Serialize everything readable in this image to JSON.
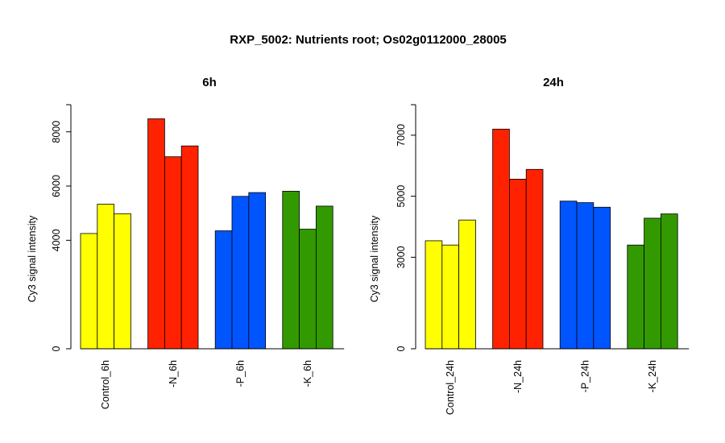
{
  "figure": {
    "title": "RXP_5002: Nutrients root; Os02g0112000_28005"
  },
  "chart_data": [
    {
      "type": "bar",
      "title": "6h",
      "ylabel": "Cy3 signal intensity",
      "xlabel": "",
      "ylim": [
        0,
        9000
      ],
      "yticks": [
        0,
        4000,
        6000,
        8000
      ],
      "categories": [
        "Control_6h",
        "-N_6h",
        "-P_6h",
        "-K_6h"
      ],
      "colors": [
        "#ffff00",
        "#ff2200",
        "#0055ff",
        "#339900"
      ],
      "values": [
        [
          4250,
          5330,
          4980
        ],
        [
          8480,
          7080,
          7480
        ],
        [
          4350,
          5620,
          5760
        ],
        [
          5810,
          4410,
          5260
        ]
      ],
      "grid": false,
      "legend": "none"
    },
    {
      "type": "bar",
      "title": "24h",
      "ylabel": "Cy3 signal intensity",
      "xlabel": "",
      "ylim": [
        0,
        8000
      ],
      "yticks": [
        0,
        3000,
        5000,
        7000
      ],
      "categories": [
        "Control_24h",
        "-N_24h",
        "-P_24h",
        "-K_24h"
      ],
      "colors": [
        "#ffff00",
        "#ff2200",
        "#0055ff",
        "#339900"
      ],
      "values": [
        [
          3540,
          3400,
          4220
        ],
        [
          7200,
          5560,
          5880
        ],
        [
          4840,
          4790,
          4640
        ],
        [
          3400,
          4280,
          4420
        ]
      ],
      "grid": false,
      "legend": "none"
    }
  ]
}
